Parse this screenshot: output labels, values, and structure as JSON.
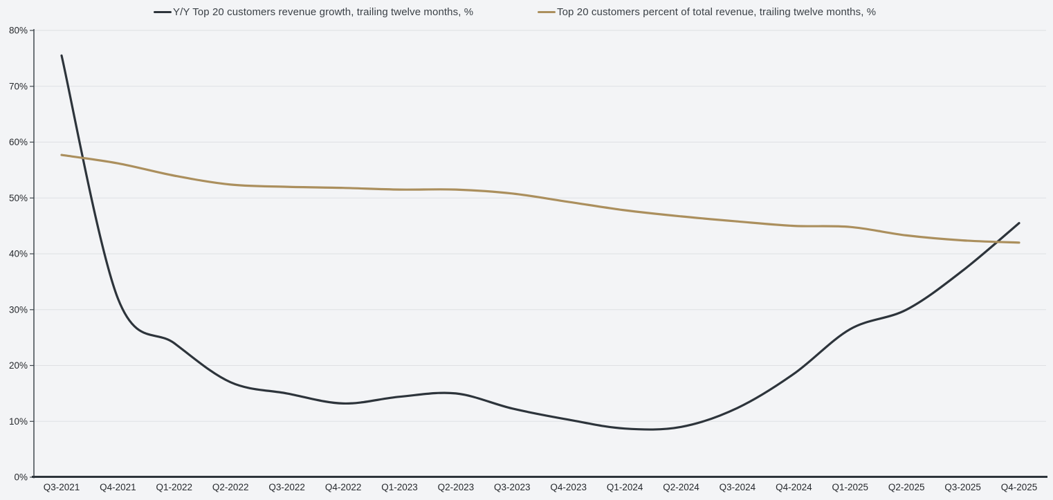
{
  "page": {
    "background_color": "#f3f4f6",
    "gridline_color": "#dee0e3",
    "axis_color": "#2d343b",
    "y_axis_color": "#3f464d",
    "tick_label_color": "#26292d",
    "legend_text_color": "#3a4046"
  },
  "chart_data": {
    "type": "line",
    "smooth": true,
    "grid": true,
    "legend_position": "top",
    "categories": [
      "Q3-2021",
      "Q4-2021",
      "Q1-2022",
      "Q2-2022",
      "Q3-2022",
      "Q4-2022",
      "Q1-2023",
      "Q2-2023",
      "Q3-2023",
      "Q4-2023",
      "Q1-2024",
      "Q2-2024",
      "Q3-2024",
      "Q4-2024",
      "Q1-2025",
      "Q2-2025",
      "Q3-2025",
      "Q4-2025"
    ],
    "series": [
      {
        "name": "Y/Y Top 20 customers revenue growth, trailing twelve months, %",
        "color": "#2d343b",
        "values": [
          75.5,
          32,
          24,
          17,
          15,
          13.2,
          14.4,
          15,
          12.3,
          10.3,
          8.7,
          9,
          12.4,
          18.5,
          26.5,
          30,
          37,
          45.5
        ]
      },
      {
        "name": "Top 20 customers percent of total revenue, trailing twelve months, %",
        "color": "#ab8f5d",
        "values": [
          57.7,
          56.2,
          54,
          52.4,
          52,
          51.8,
          51.5,
          51.5,
          50.8,
          49.3,
          47.8,
          46.7,
          45.8,
          45,
          44.8,
          43.3,
          42.4,
          42
        ]
      }
    ],
    "ylim": [
      0,
      80
    ],
    "y_tick_step": 10,
    "y_tick_labels": [
      "0%",
      "10%",
      "20%",
      "30%",
      "40%",
      "50%",
      "60%",
      "70%",
      "80%"
    ],
    "xlabel": "",
    "ylabel": "",
    "title": ""
  }
}
